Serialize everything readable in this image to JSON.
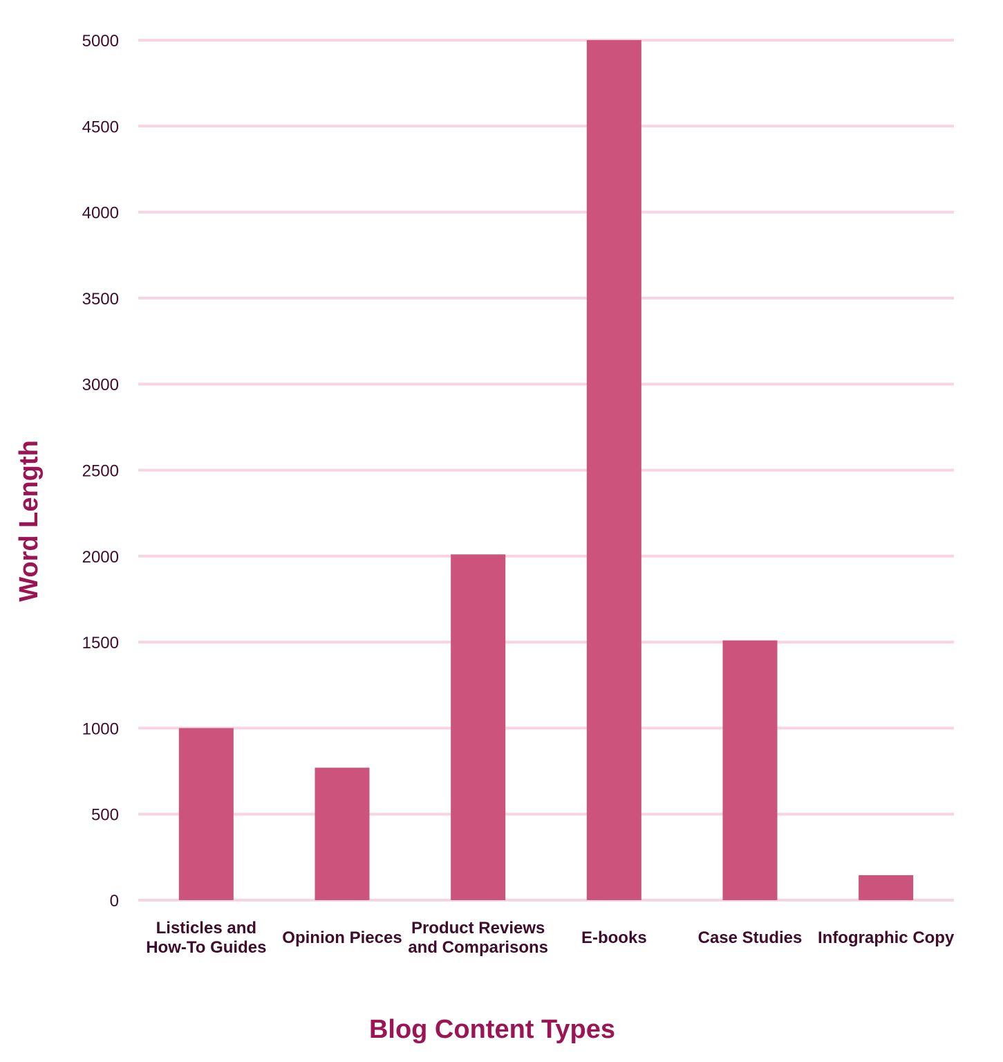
{
  "chart_data": {
    "type": "bar",
    "categories": [
      [
        "Listicles and",
        "How-To Guides"
      ],
      [
        "Opinion Pieces"
      ],
      [
        "Product Reviews",
        "and Comparisons"
      ],
      [
        "E-books"
      ],
      [
        "Case Studies"
      ],
      [
        "Infographic Copy"
      ]
    ],
    "values": [
      1000,
      770,
      2010,
      5000,
      1510,
      145
    ],
    "yticks": [
      0,
      500,
      1000,
      1500,
      2000,
      2500,
      3000,
      3500,
      4000,
      4500,
      5000
    ],
    "ylim": [
      0,
      5000
    ],
    "xlabel": "Blog Content Types",
    "ylabel": "Word Length",
    "grid": true,
    "colors": {
      "bar": "#cc537b",
      "grid": "#f8d3e3",
      "axis_title": "#9b1454",
      "tick_text": "#3f0d2c"
    }
  }
}
